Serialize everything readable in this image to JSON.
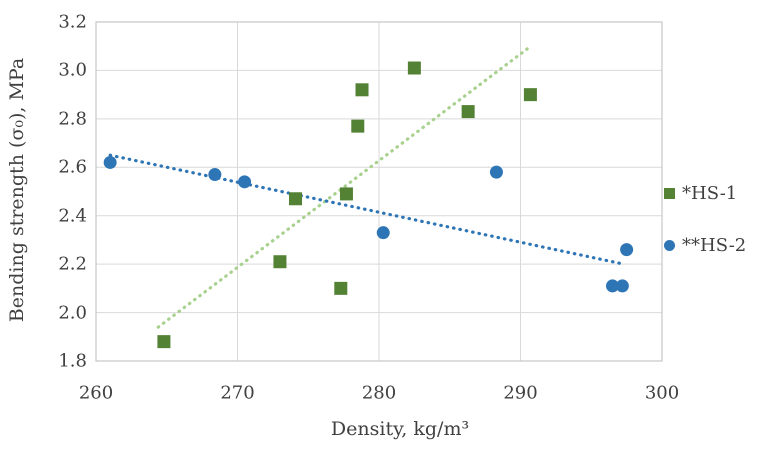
{
  "chart_data": {
    "type": "scatter",
    "title": "",
    "xlabel": "Density, kg/m³",
    "ylabel": "Bending strength (σ₀), MPa",
    "xlim": [
      260,
      300
    ],
    "ylim": [
      1.8,
      3.2
    ],
    "xticks": [
      260,
      270,
      280,
      290,
      300
    ],
    "yticks": [
      1.8,
      2.0,
      2.2,
      2.4,
      2.6,
      2.8,
      3.0,
      3.2
    ],
    "grid": true,
    "legend_position": "right",
    "colors": {
      "hs1_marker": "#548235",
      "hs1_trendline": "#A9D18E",
      "hs2_marker": "#2E75B6",
      "hs2_trendline": "#2E75B6",
      "gridline": "#D9D9D9",
      "plot_border": "#C6C6C6",
      "text": "#404040"
    },
    "series": [
      {
        "name": "*HS-1",
        "marker": "square",
        "color": "#548235",
        "points": [
          [
            264.8,
            1.88
          ],
          [
            273.0,
            2.21
          ],
          [
            274.1,
            2.47
          ],
          [
            277.3,
            2.1
          ],
          [
            277.7,
            2.49
          ],
          [
            278.5,
            2.77
          ],
          [
            278.8,
            2.92
          ],
          [
            282.5,
            3.01
          ],
          [
            286.3,
            2.83
          ],
          [
            290.7,
            2.9
          ]
        ],
        "trendline": {
          "style": "dotted",
          "color": "#A9D18E",
          "from": [
            264.4,
            1.94
          ],
          "to": [
            290.5,
            3.09
          ]
        }
      },
      {
        "name": "**HS-2",
        "marker": "circle",
        "color": "#2E75B6",
        "points": [
          [
            261.0,
            2.62
          ],
          [
            268.4,
            2.57
          ],
          [
            270.5,
            2.54
          ],
          [
            280.3,
            2.33
          ],
          [
            288.3,
            2.58
          ],
          [
            296.5,
            2.11
          ],
          [
            297.2,
            2.11
          ],
          [
            297.5,
            2.26
          ]
        ],
        "trendline": {
          "style": "dotted",
          "color": "#2E75B6",
          "from": [
            261.0,
            2.65
          ],
          "to": [
            297.3,
            2.2
          ]
        }
      }
    ]
  }
}
